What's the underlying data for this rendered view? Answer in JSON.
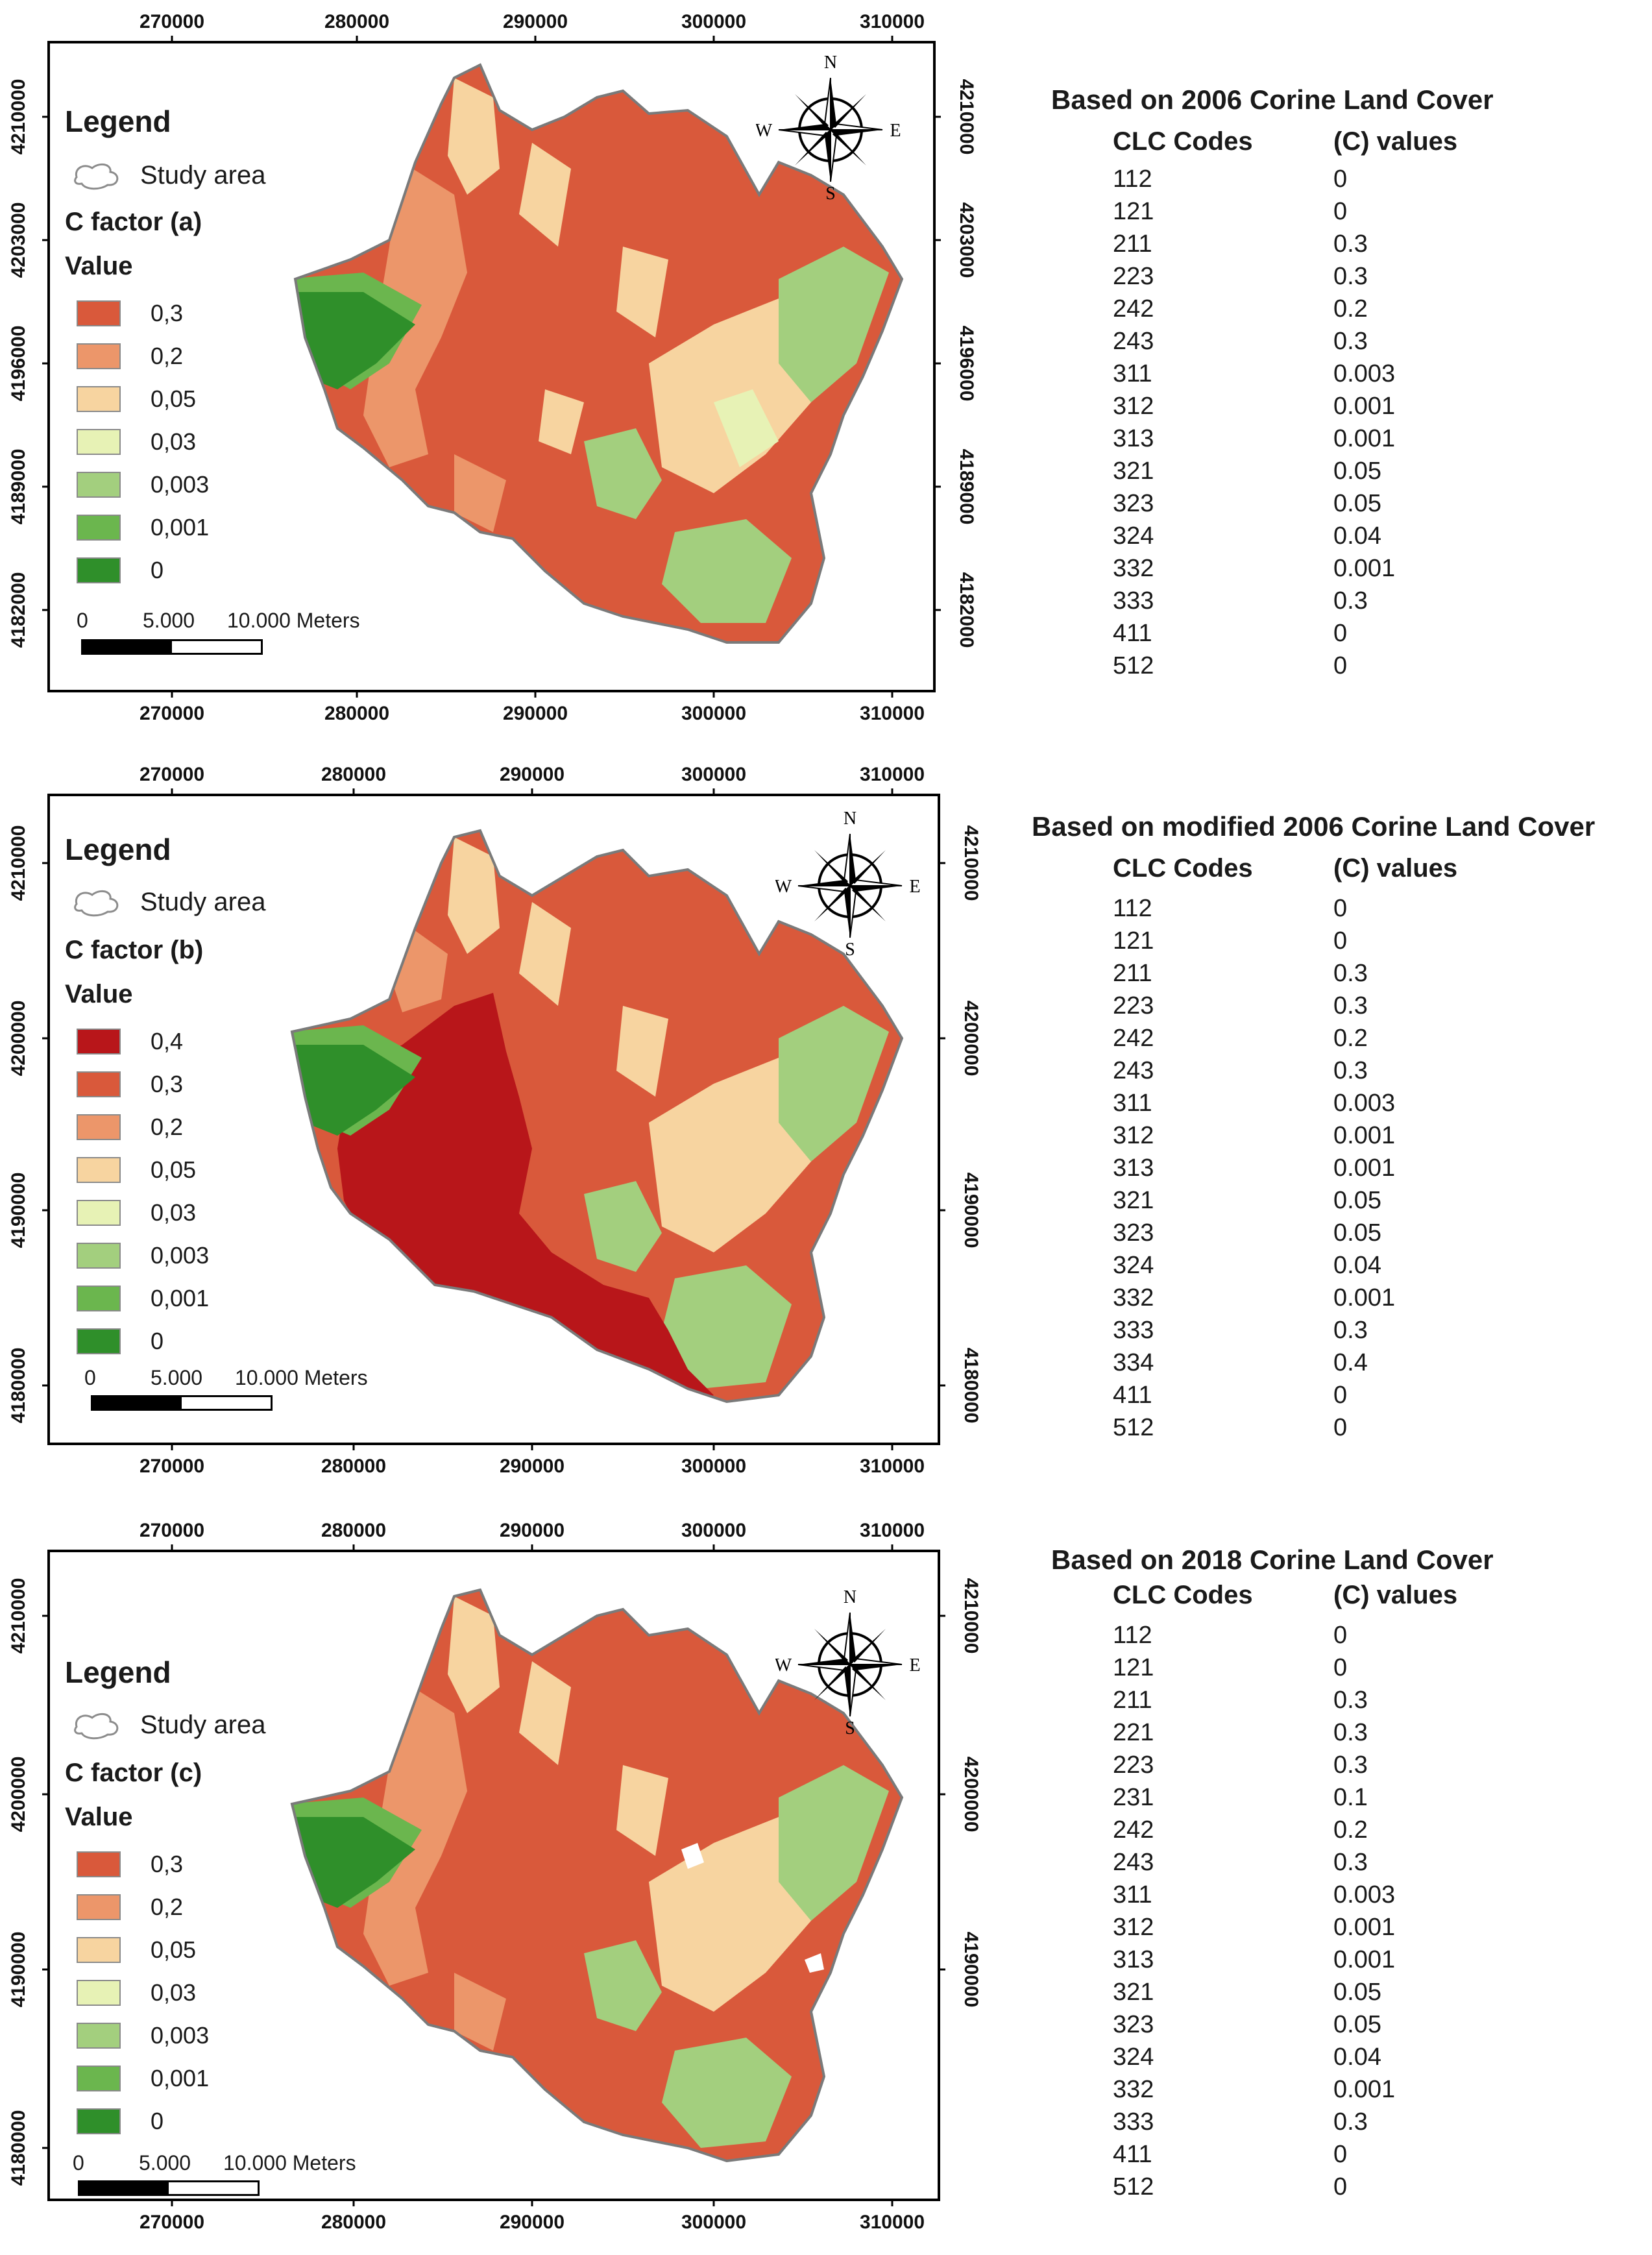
{
  "colors": {
    "c04": "#b8161a",
    "c03": "#d9593b",
    "c02": "#ec966a",
    "c005": "#f7d4a0",
    "c003": "#e7f2b5",
    "c0003": "#a3cf7e",
    "c0001": "#6bb64e",
    "c0": "#2f8f2a",
    "study_area_stroke": "#8c8c8c"
  },
  "panels": [
    {
      "legend": {
        "title": "Legend",
        "study_area": "Study area",
        "cfactor": "C factor (a)",
        "value_header": "Value",
        "items": [
          {
            "label": "0,3",
            "color": "#d9593b"
          },
          {
            "label": "0,2",
            "color": "#ec966a"
          },
          {
            "label": "0,05",
            "color": "#f7d4a0"
          },
          {
            "label": "0,03",
            "color": "#e7f2b5"
          },
          {
            "label": "0,003",
            "color": "#a3cf7e"
          },
          {
            "label": "0,001",
            "color": "#6bb64e"
          },
          {
            "label": "0",
            "color": "#2f8f2a"
          }
        ]
      },
      "scalebar": {
        "zero": "0",
        "mid": "5.000",
        "end": "10.000 Meters"
      },
      "x_ticks": [
        "270000",
        "280000",
        "290000",
        "300000",
        "310000"
      ],
      "y_ticks_left": [
        "4210000",
        "4203000",
        "4196000",
        "4189000",
        "4182000"
      ],
      "y_ticks_right": [
        "4210000",
        "4203000",
        "4196000",
        "4189000",
        "4182000"
      ],
      "compass": {
        "n": "N",
        "s": "S",
        "e": "E",
        "w": "W"
      },
      "table": {
        "title": "Based on 2006 Corine Land Cover",
        "col1": "CLC Codes",
        "col2": "(C) values",
        "rows": [
          [
            "112",
            "0"
          ],
          [
            "121",
            "0"
          ],
          [
            "211",
            "0.3"
          ],
          [
            "223",
            "0.3"
          ],
          [
            "242",
            "0.2"
          ],
          [
            "243",
            "0.3"
          ],
          [
            "311",
            "0.003"
          ],
          [
            "312",
            "0.001"
          ],
          [
            "313",
            "0.001"
          ],
          [
            "321",
            "0.05"
          ],
          [
            "323",
            "0.05"
          ],
          [
            "324",
            "0.04"
          ],
          [
            "332",
            "0.001"
          ],
          [
            "333",
            "0.3"
          ],
          [
            "411",
            "0"
          ],
          [
            "512",
            "0"
          ]
        ]
      }
    },
    {
      "legend": {
        "title": "Legend",
        "study_area": "Study area",
        "cfactor": "C factor (b)",
        "value_header": "Value",
        "items": [
          {
            "label": "0,4",
            "color": "#b8161a"
          },
          {
            "label": "0,3",
            "color": "#d9593b"
          },
          {
            "label": "0,2",
            "color": "#ec966a"
          },
          {
            "label": "0,05",
            "color": "#f7d4a0"
          },
          {
            "label": "0,03",
            "color": "#e7f2b5"
          },
          {
            "label": "0,003",
            "color": "#a3cf7e"
          },
          {
            "label": "0,001",
            "color": "#6bb64e"
          },
          {
            "label": "0",
            "color": "#2f8f2a"
          }
        ]
      },
      "scalebar": {
        "zero": "0",
        "mid": "5.000",
        "end": "10.000 Meters"
      },
      "x_ticks": [
        "270000",
        "280000",
        "290000",
        "300000",
        "310000"
      ],
      "y_ticks_left": [
        "4210000",
        "4200000",
        "4190000",
        "4180000"
      ],
      "y_ticks_right": [
        "4210000",
        "4200000",
        "4190000",
        "4180000"
      ],
      "compass": {
        "n": "N",
        "s": "S",
        "e": "E",
        "w": "W"
      },
      "table": {
        "title": "Based on modified 2006 Corine Land Cover",
        "col1": "CLC Codes",
        "col2": "(C) values",
        "rows": [
          [
            "112",
            "0"
          ],
          [
            "121",
            "0"
          ],
          [
            "211",
            "0.3"
          ],
          [
            "223",
            "0.3"
          ],
          [
            "242",
            "0.2"
          ],
          [
            "243",
            "0.3"
          ],
          [
            "311",
            "0.003"
          ],
          [
            "312",
            "0.001"
          ],
          [
            "313",
            "0.001"
          ],
          [
            "321",
            "0.05"
          ],
          [
            "323",
            "0.05"
          ],
          [
            "324",
            "0.04"
          ],
          [
            "332",
            "0.001"
          ],
          [
            "333",
            "0.3"
          ],
          [
            "334",
            "0.4"
          ],
          [
            "411",
            "0"
          ],
          [
            "512",
            "0"
          ]
        ]
      }
    },
    {
      "legend": {
        "title": "Legend",
        "study_area": "Study area",
        "cfactor": "C factor (c)",
        "value_header": "Value",
        "items": [
          {
            "label": "0,3",
            "color": "#d9593b"
          },
          {
            "label": "0,2",
            "color": "#ec966a"
          },
          {
            "label": "0,05",
            "color": "#f7d4a0"
          },
          {
            "label": "0,03",
            "color": "#e7f2b5"
          },
          {
            "label": "0,003",
            "color": "#a3cf7e"
          },
          {
            "label": "0,001",
            "color": "#6bb64e"
          },
          {
            "label": "0",
            "color": "#2f8f2a"
          }
        ]
      },
      "scalebar": {
        "zero": "0",
        "mid": "5.000",
        "end": "10.000 Meters"
      },
      "x_ticks": [
        "270000",
        "280000",
        "290000",
        "300000",
        "310000"
      ],
      "y_ticks_left": [
        "4210000",
        "4200000",
        "4190000",
        "4180000"
      ],
      "y_ticks_right": [
        "4210000",
        "4200000",
        "4190000"
      ],
      "compass": {
        "n": "N",
        "s": "S",
        "e": "E",
        "w": "W"
      },
      "table": {
        "title": "Based on 2018 Corine Land Cover",
        "col1": "CLC Codes",
        "col2": "(C) values",
        "rows": [
          [
            "112",
            "0"
          ],
          [
            "121",
            "0"
          ],
          [
            "211",
            "0.3"
          ],
          [
            "221",
            "0.3"
          ],
          [
            "223",
            "0.3"
          ],
          [
            "231",
            "0.1"
          ],
          [
            "242",
            "0.2"
          ],
          [
            "243",
            "0.3"
          ],
          [
            "311",
            "0.003"
          ],
          [
            "312",
            "0.001"
          ],
          [
            "313",
            "0.001"
          ],
          [
            "321",
            "0.05"
          ],
          [
            "323",
            "0.05"
          ],
          [
            "324",
            "0.04"
          ],
          [
            "332",
            "0.001"
          ],
          [
            "333",
            "0.3"
          ],
          [
            "411",
            "0"
          ],
          [
            "512",
            "0"
          ]
        ]
      }
    }
  ]
}
